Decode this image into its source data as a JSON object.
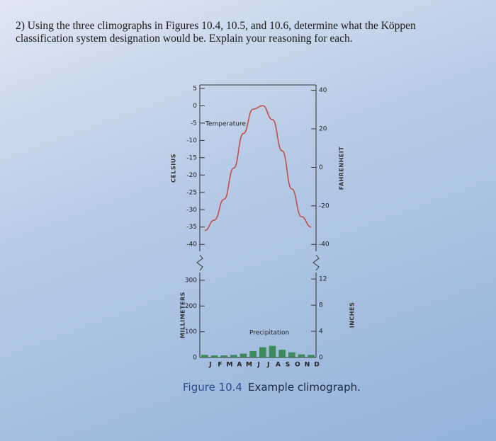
{
  "question": "2) Using the three climographs in Figures 10.4, 10.5, and 10.6, determine what the Köppen classification system designation would be. Explain your reasoning for each.",
  "chart_data": {
    "type": "climograph",
    "categories": [
      "J",
      "F",
      "M",
      "A",
      "M",
      "J",
      "J",
      "A",
      "S",
      "O",
      "N",
      "D"
    ],
    "temperature": {
      "label": "Temperature",
      "color": "#c0504d",
      "values": [
        -36,
        -33,
        -27,
        -18,
        -8,
        -1,
        0,
        -4,
        -13,
        -24,
        -32,
        -35
      ],
      "ylabel": "CELSIUS",
      "ylim": [
        -42,
        6
      ],
      "yticks": [
        5,
        0,
        -5,
        -10,
        -15,
        -20,
        -25,
        -30,
        -35,
        -40
      ],
      "y2label": "FAHRENHEIT",
      "y2lim": [
        -43.6,
        42.8
      ],
      "y2ticks": [
        40,
        20,
        0,
        -20,
        -40
      ]
    },
    "precipitation": {
      "label": "Precipitation",
      "color": "#3d8a5c",
      "values": [
        10,
        8,
        8,
        10,
        15,
        25,
        40,
        45,
        30,
        20,
        12,
        10
      ],
      "ylabel": "MILLIMETERS",
      "ylim": [
        0,
        330
      ],
      "yticks": [
        0,
        100,
        200,
        300
      ],
      "y2label": "INCHES",
      "y2lim": [
        0,
        12.99
      ],
      "y2ticks": [
        0,
        4,
        8,
        12
      ]
    }
  },
  "caption": {
    "number": "Figure 10.4",
    "text": "Example climograph."
  }
}
